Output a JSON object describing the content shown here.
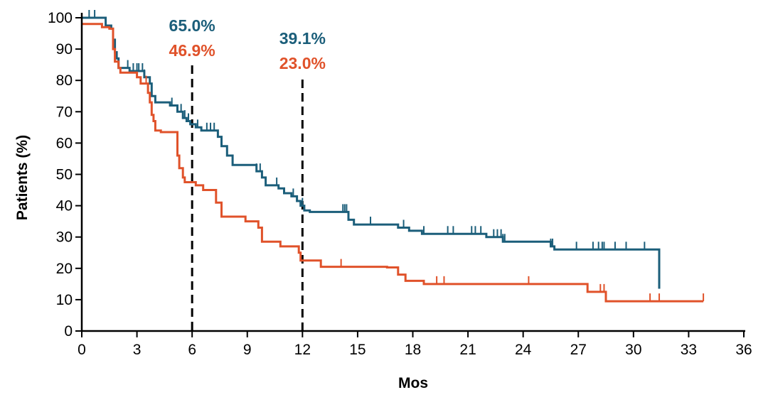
{
  "chart_data": {
    "type": "line",
    "title": "",
    "xlabel": "Mos",
    "ylabel": "Patients (%)",
    "xlim": [
      0,
      36
    ],
    "ylim": [
      0,
      100
    ],
    "xticks": [
      "0",
      "3",
      "6",
      "9",
      "12",
      "15",
      "18",
      "21",
      "24",
      "27",
      "30",
      "33",
      "36"
    ],
    "yticks": [
      "0",
      "10",
      "20",
      "30",
      "40",
      "50",
      "60",
      "70",
      "80",
      "90",
      "100"
    ],
    "grid": false,
    "legend": "none",
    "reference_lines_x": [
      6,
      12
    ],
    "annotations": [
      {
        "text": "65.0%",
        "x": 6,
        "row": 1,
        "color": "#1b5e7a"
      },
      {
        "text": "46.9%",
        "x": 6,
        "row": 2,
        "color": "#e0522a"
      },
      {
        "text": "39.1%",
        "x": 12,
        "row": 1,
        "color": "#1b5e7a"
      },
      {
        "text": "23.0%",
        "x": 12,
        "row": 2,
        "color": "#e0522a"
      }
    ],
    "series": [
      {
        "color": "#1b5e7a",
        "steps": [
          [
            0,
            100
          ],
          [
            1.3,
            97.5
          ],
          [
            1.6,
            96.5
          ],
          [
            1.7,
            93
          ],
          [
            1.8,
            89
          ],
          [
            1.9,
            87
          ],
          [
            2.0,
            84
          ],
          [
            2.6,
            83
          ],
          [
            3.4,
            81
          ],
          [
            3.7,
            79
          ],
          [
            3.8,
            75
          ],
          [
            4.0,
            73
          ],
          [
            4.8,
            72
          ],
          [
            5.2,
            70
          ],
          [
            5.5,
            68
          ],
          [
            5.7,
            67
          ],
          [
            5.9,
            66
          ],
          [
            6.2,
            65
          ],
          [
            6.5,
            64
          ],
          [
            7.4,
            62
          ],
          [
            7.6,
            59
          ],
          [
            7.9,
            56
          ],
          [
            8.2,
            53
          ],
          [
            9.5,
            51
          ],
          [
            9.8,
            49
          ],
          [
            10.0,
            46.5
          ],
          [
            10.7,
            45.5
          ],
          [
            11.0,
            44
          ],
          [
            11.4,
            43
          ],
          [
            11.7,
            41.5
          ],
          [
            11.9,
            40
          ],
          [
            12.1,
            38.5
          ],
          [
            12.4,
            38
          ],
          [
            14.5,
            35.5
          ],
          [
            14.8,
            34
          ],
          [
            17.2,
            33
          ],
          [
            17.8,
            32
          ],
          [
            18.5,
            31
          ],
          [
            22.0,
            30
          ],
          [
            22.9,
            28.5
          ],
          [
            25.5,
            27
          ],
          [
            25.7,
            26
          ],
          [
            31.4,
            13.5
          ]
        ],
        "end_x": 31.4,
        "censor_x": [
          0.4,
          0.7,
          2.5,
          2.8,
          3.0,
          3.1,
          3.3,
          3.4,
          4.9,
          5.4,
          5.6,
          5.8,
          6.3,
          6.8,
          7.0,
          7.2,
          9.5,
          9.7,
          10.6,
          11.5,
          12.0,
          14.2,
          14.3,
          14.4,
          15.7,
          17.5,
          18.6,
          19.9,
          20.2,
          21.2,
          21.4,
          21.7,
          22.4,
          22.6,
          22.8,
          22.9,
          23.0,
          25.5,
          25.6,
          26.9,
          27.8,
          28.1,
          28.3,
          28.4,
          29.0,
          29.6,
          30.6
        ],
        "values_at_reference": {
          "6": 65.0,
          "12": 39.1
        }
      },
      {
        "color": "#e0522a",
        "steps": [
          [
            0,
            98
          ],
          [
            1.1,
            97
          ],
          [
            1.5,
            96.5
          ],
          [
            1.7,
            90
          ],
          [
            1.8,
            86
          ],
          [
            2.0,
            84
          ],
          [
            2.1,
            82.5
          ],
          [
            3.0,
            81
          ],
          [
            3.2,
            79
          ],
          [
            3.6,
            76
          ],
          [
            3.7,
            73
          ],
          [
            3.8,
            69
          ],
          [
            3.9,
            67
          ],
          [
            4.0,
            64
          ],
          [
            4.3,
            63.5
          ],
          [
            5.2,
            56
          ],
          [
            5.3,
            52
          ],
          [
            5.5,
            49
          ],
          [
            5.6,
            47.5
          ],
          [
            6.2,
            46.5
          ],
          [
            6.6,
            45
          ],
          [
            7.3,
            41
          ],
          [
            7.6,
            36.5
          ],
          [
            8.9,
            35
          ],
          [
            9.6,
            33
          ],
          [
            9.8,
            28.5
          ],
          [
            10.8,
            27
          ],
          [
            11.8,
            25
          ],
          [
            11.9,
            22.5
          ],
          [
            13.0,
            20.5
          ],
          [
            16.6,
            20.3
          ],
          [
            17.2,
            18
          ],
          [
            17.6,
            16
          ],
          [
            18.6,
            15
          ],
          [
            27.5,
            12.5
          ],
          [
            28.5,
            9.5
          ]
        ],
        "end_x": 33.8,
        "censor_x": [
          3.5,
          14.1,
          19.3,
          19.7,
          24.3,
          28.2,
          28.4,
          30.9,
          31.4,
          33.8
        ],
        "values_at_reference": {
          "6": 46.9,
          "12": 23.0
        }
      }
    ]
  }
}
